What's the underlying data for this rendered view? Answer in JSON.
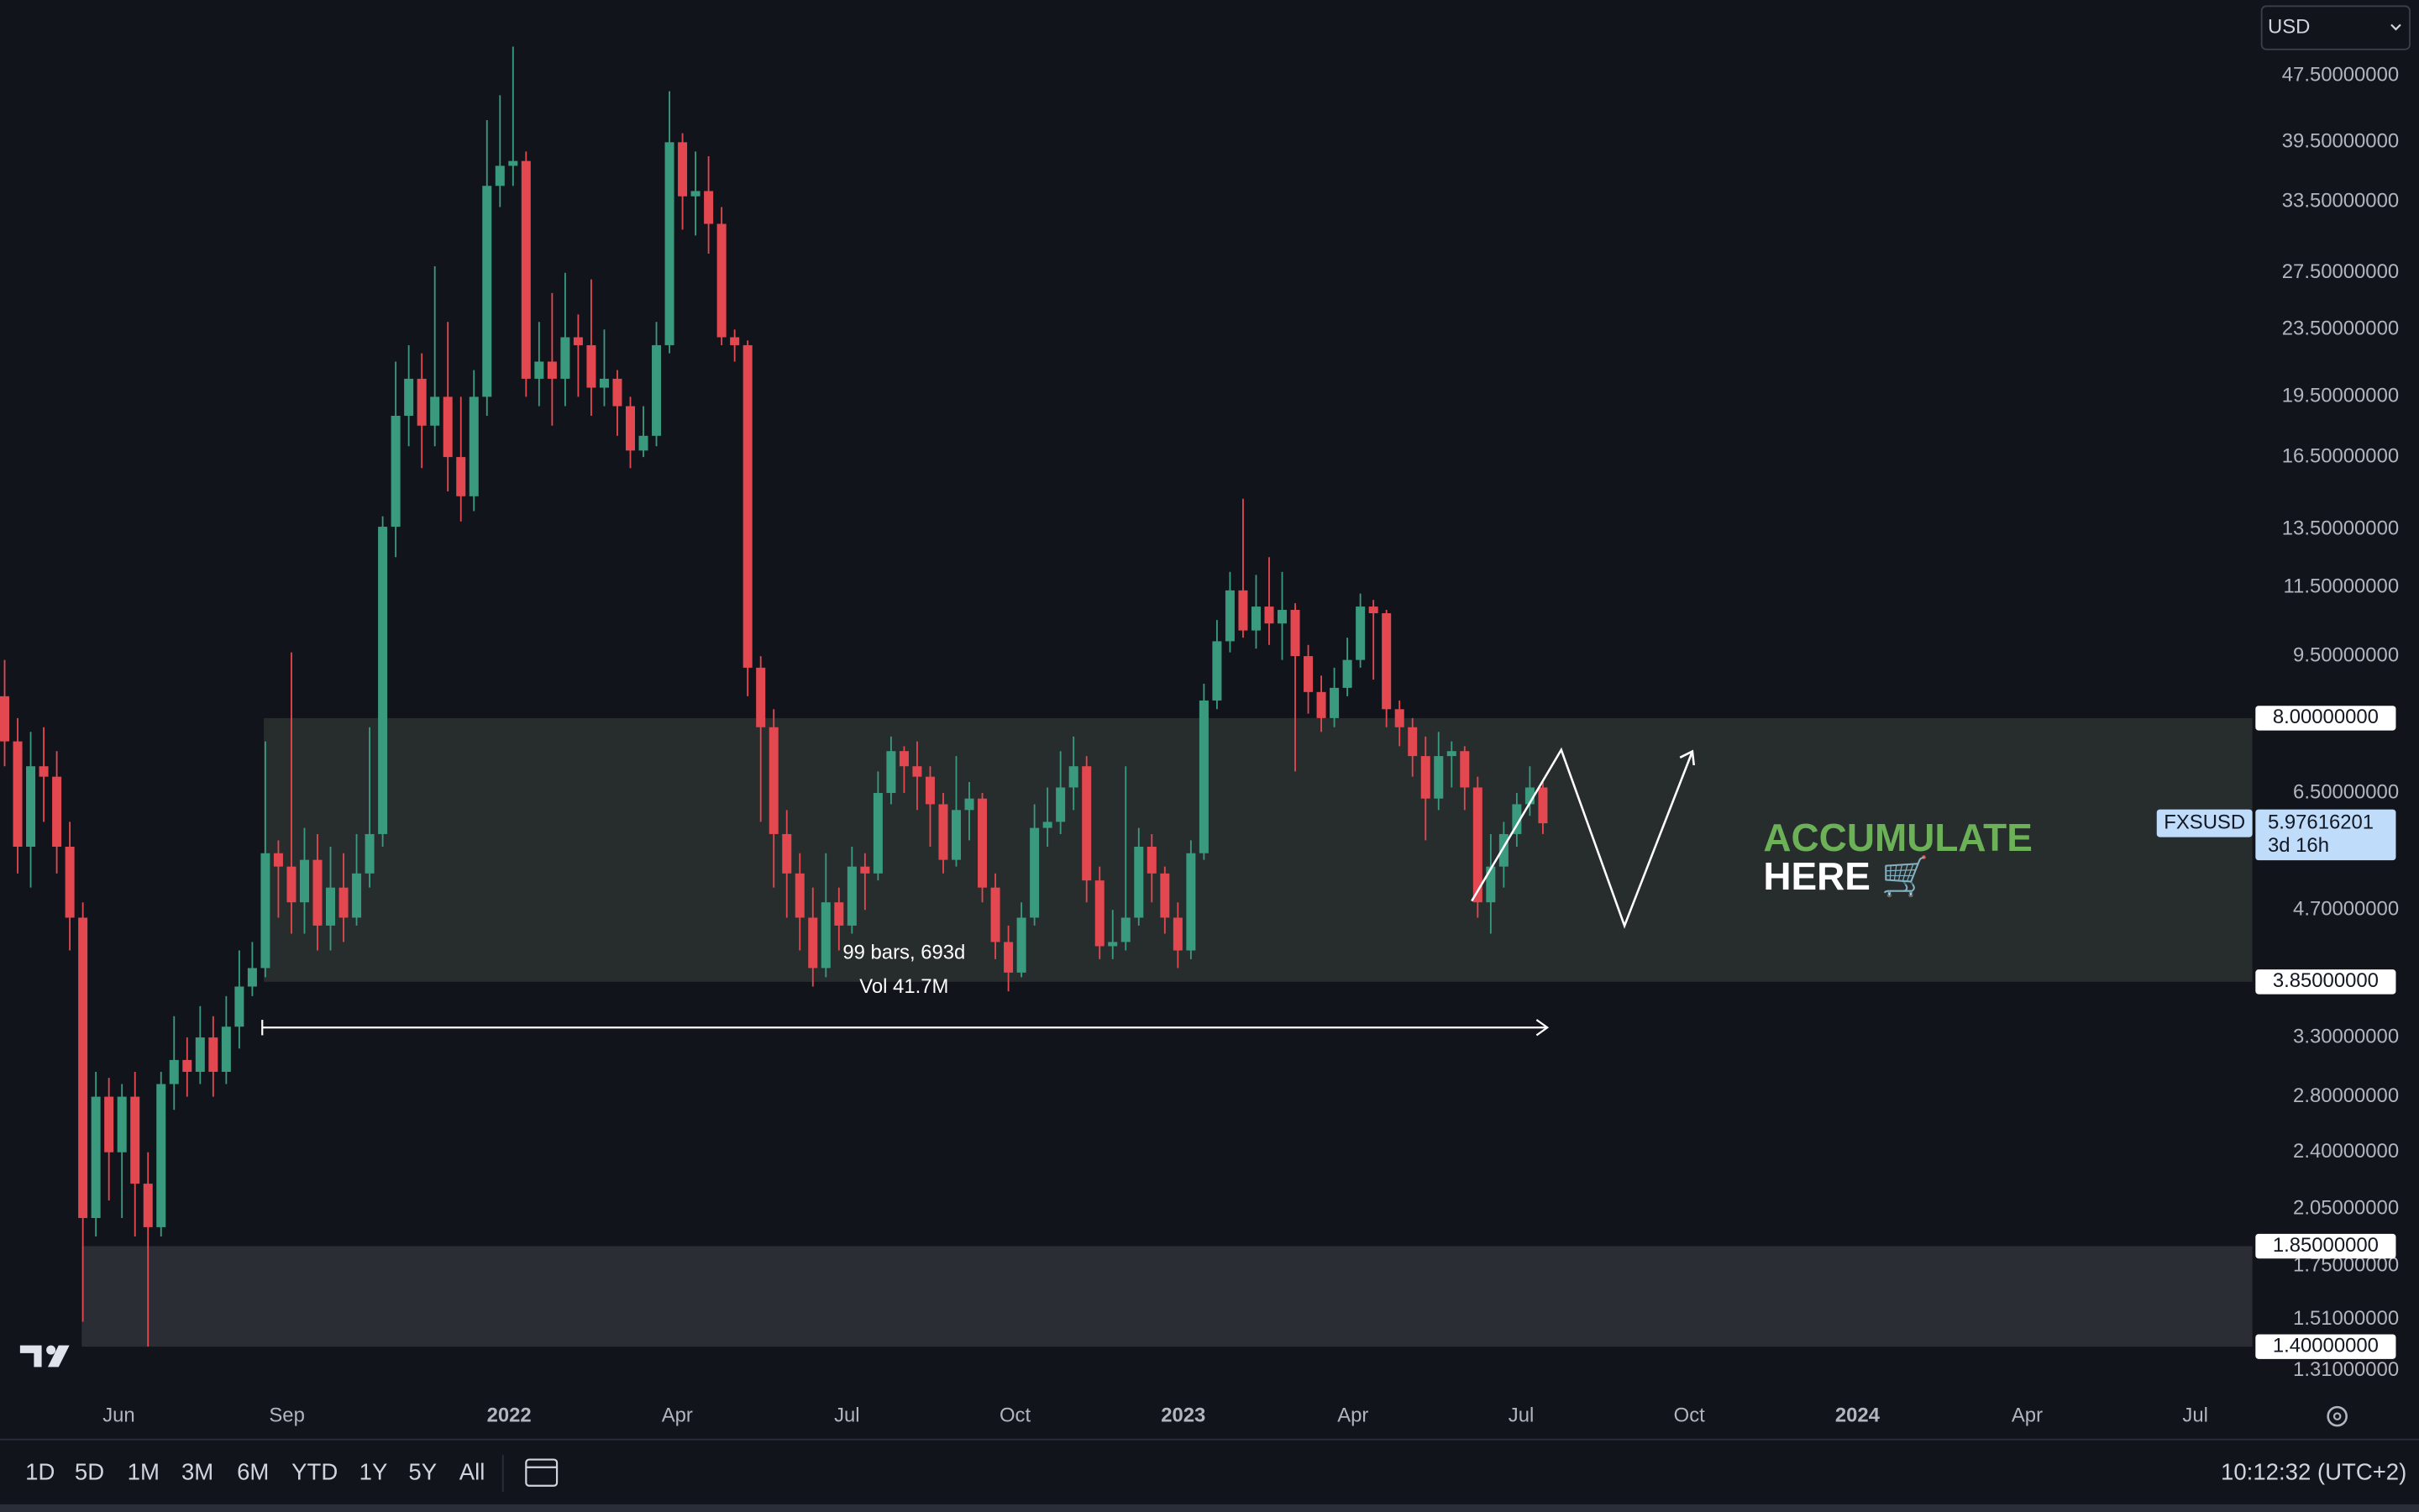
{
  "chart_data": {
    "type": "candlestick",
    "symbol": "FXSUSD",
    "currency": "USD",
    "log_scale": true,
    "grid": false,
    "up_color": "#3a9a7e",
    "down_color": "#e3474f",
    "open": [
      8.5,
      7.5,
      5.6,
      7.0,
      6.8,
      5.6,
      4.6,
      2.0,
      2.8,
      2.4,
      2.8,
      2.2,
      1.95,
      2.9,
      3.1,
      3.0,
      3.3,
      3.0,
      3.4,
      3.8,
      4.0,
      5.5,
      5.3,
      4.8,
      5.4,
      4.5,
      5.0,
      4.6,
      5.2,
      5.8,
      13.6,
      18.5,
      20.5,
      18.0,
      19.5,
      16.5,
      14.8,
      19.5,
      35.0,
      37.0,
      37.5,
      20.5,
      21.5,
      20.5,
      23.0,
      22.5,
      20.0,
      20.5,
      19.0,
      16.8,
      17.5,
      22.5,
      39.5,
      34.0,
      34.5,
      31.5,
      23.0,
      22.5,
      9.2,
      7.8,
      5.8,
      5.2,
      4.6,
      4.0,
      4.8,
      4.5,
      5.3,
      5.2,
      6.5,
      7.3,
      7.0,
      6.8,
      6.3,
      5.4,
      6.2,
      6.4,
      5.0,
      4.3,
      3.95,
      4.6,
      5.9,
      6.0,
      6.6,
      7.0,
      5.1,
      4.25,
      4.3,
      4.6,
      5.6,
      5.2,
      4.6,
      4.2,
      5.5,
      8.4,
      9.9,
      11.4,
      10.2,
      10.9,
      10.4,
      10.8,
      9.5,
      8.6,
      8.0,
      8.7,
      9.4,
      10.9,
      10.7,
      8.2,
      7.8,
      7.2,
      6.4,
      7.2,
      7.3,
      6.6,
      4.8,
      5.3,
      5.8,
      6.3,
      6.6
    ],
    "high": [
      9.4,
      8.0,
      7.7,
      7.8,
      7.3,
      6.0,
      4.8,
      3.0,
      2.95,
      2.9,
      3.0,
      2.4,
      3.0,
      3.5,
      3.3,
      3.6,
      3.5,
      3.7,
      4.2,
      4.3,
      7.5,
      5.7,
      9.6,
      5.9,
      5.8,
      5.6,
      5.5,
      5.8,
      7.8,
      14.0,
      21.5,
      22.5,
      22.0,
      28.0,
      24.0,
      19.5,
      21.0,
      42.0,
      45.0,
      51.5,
      38.5,
      24.0,
      26.0,
      27.5,
      24.5,
      27.0,
      23.5,
      21.0,
      19.5,
      19.0,
      24.0,
      45.5,
      40.5,
      38.5,
      38.0,
      33.0,
      23.5,
      22.8,
      9.5,
      8.2,
      6.2,
      5.5,
      5.0,
      5.5,
      5.0,
      5.6,
      5.5,
      6.9,
      7.6,
      7.4,
      7.5,
      7.0,
      6.5,
      7.2,
      6.7,
      6.5,
      5.2,
      4.5,
      4.8,
      6.3,
      6.6,
      7.3,
      7.6,
      7.2,
      5.3,
      4.7,
      7.0,
      5.9,
      5.8,
      5.3,
      4.8,
      5.7,
      8.8,
      10.5,
      12.0,
      14.7,
      11.9,
      12.5,
      12.0,
      11.0,
      9.8,
      9.0,
      9.2,
      10.0,
      11.3,
      11.1,
      10.8,
      8.4,
      8.0,
      7.6,
      7.7,
      7.5,
      7.4,
      6.8,
      5.8,
      6.0,
      6.5,
      7.0,
      6.7
    ],
    "low": [
      7.0,
      5.2,
      5.0,
      6.0,
      5.2,
      4.2,
      1.5,
      1.9,
      2.1,
      2.0,
      1.9,
      1.4,
      1.9,
      2.7,
      2.8,
      2.9,
      2.8,
      2.9,
      3.2,
      3.7,
      3.9,
      4.6,
      4.4,
      4.4,
      4.2,
      4.2,
      4.3,
      4.5,
      5.0,
      5.6,
      12.5,
      17.0,
      16.0,
      17.0,
      15.0,
      13.8,
      14.2,
      18.5,
      33.0,
      35.0,
      19.5,
      19.0,
      18.0,
      19.0,
      19.5,
      18.5,
      19.0,
      17.5,
      16.0,
      16.5,
      17.0,
      22.0,
      31.0,
      30.5,
      29.0,
      22.5,
      21.5,
      8.5,
      6.0,
      5.0,
      4.6,
      4.2,
      3.8,
      3.9,
      4.2,
      4.4,
      4.7,
      5.1,
      6.3,
      6.5,
      6.2,
      5.6,
      5.2,
      5.3,
      5.7,
      4.8,
      4.1,
      3.75,
      3.9,
      4.5,
      5.6,
      5.8,
      6.2,
      4.8,
      4.1,
      4.1,
      4.2,
      4.5,
      4.8,
      4.4,
      4.0,
      4.1,
      5.4,
      8.2,
      9.6,
      10.0,
      9.7,
      9.8,
      9.4,
      6.9,
      8.1,
      7.7,
      7.8,
      8.5,
      9.2,
      8.9,
      7.8,
      7.4,
      6.8,
      5.7,
      6.2,
      6.6,
      6.2,
      4.6,
      4.4,
      5.0,
      5.6,
      6.1,
      5.8
    ],
    "close": [
      7.5,
      5.6,
      7.0,
      6.8,
      5.6,
      4.6,
      2.0,
      2.8,
      2.4,
      2.8,
      2.2,
      1.95,
      2.9,
      3.1,
      3.0,
      3.3,
      3.0,
      3.4,
      3.8,
      4.0,
      5.5,
      5.3,
      4.8,
      5.4,
      4.5,
      5.0,
      4.6,
      5.2,
      5.8,
      13.6,
      18.5,
      20.5,
      18.0,
      19.5,
      16.5,
      14.8,
      19.5,
      35.0,
      37.0,
      37.5,
      20.5,
      21.5,
      20.5,
      23.0,
      22.5,
      20.0,
      20.5,
      19.0,
      16.8,
      17.5,
      22.5,
      39.5,
      34.0,
      34.5,
      31.5,
      23.0,
      22.5,
      9.2,
      7.8,
      5.8,
      5.2,
      4.6,
      4.0,
      4.8,
      4.5,
      5.3,
      5.2,
      6.5,
      7.3,
      7.0,
      6.8,
      6.3,
      5.4,
      6.2,
      6.4,
      5.0,
      4.3,
      3.95,
      4.6,
      5.9,
      6.0,
      6.6,
      7.0,
      5.1,
      4.25,
      4.3,
      4.6,
      5.6,
      5.2,
      4.6,
      4.2,
      5.5,
      8.4,
      9.9,
      11.4,
      10.2,
      10.9,
      10.4,
      10.8,
      9.5,
      8.6,
      8.0,
      8.7,
      9.4,
      10.9,
      10.7,
      8.2,
      7.8,
      7.2,
      6.4,
      7.2,
      7.3,
      6.6,
      4.8,
      5.3,
      5.8,
      6.3,
      6.6,
      5.97616201
    ],
    "xticks": [
      "Jun",
      "Sep",
      "2022",
      "Apr",
      "Jul",
      "Oct",
      "2023",
      "Apr",
      "Jul",
      "Oct",
      "2024",
      "Apr",
      "Jul"
    ],
    "ylim": [
      1.22,
      58.6
    ],
    "yticks": [
      {
        "value": 47.5,
        "label": "47.50000000"
      },
      {
        "value": 39.5,
        "label": "39.50000000"
      },
      {
        "value": 33.5,
        "label": "33.50000000"
      },
      {
        "value": 27.5,
        "label": "27.50000000"
      },
      {
        "value": 23.5,
        "label": "23.50000000"
      },
      {
        "value": 19.5,
        "label": "19.50000000"
      },
      {
        "value": 16.5,
        "label": "16.50000000"
      },
      {
        "value": 13.5,
        "label": "13.50000000"
      },
      {
        "value": 11.5,
        "label": "11.50000000"
      },
      {
        "value": 9.5,
        "label": "9.50000000"
      },
      {
        "value": 6.5,
        "label": "6.50000000"
      },
      {
        "value": 4.7,
        "label": "4.70000000"
      },
      {
        "value": 3.3,
        "label": "3.30000000"
      },
      {
        "value": 2.8,
        "label": "2.80000000"
      },
      {
        "value": 2.4,
        "label": "2.40000000"
      },
      {
        "value": 2.05,
        "label": "2.05000000"
      },
      {
        "value": 1.75,
        "label": "1.75000000"
      },
      {
        "value": 1.51,
        "label": "1.51000000"
      },
      {
        "value": 1.31,
        "label": "1.31000000"
      }
    ],
    "zones": [
      {
        "top": {
          "value": 8.0,
          "label": "8.00000000"
        },
        "bottom": {
          "value": 3.85,
          "label": "3.85000000"
        },
        "color": "#272c2d"
      },
      {
        "top": {
          "value": 1.85,
          "label": "1.85000000"
        },
        "bottom": {
          "value": 1.4,
          "label": "1.40000000"
        },
        "color": "#2b2d35"
      }
    ],
    "last_price": {
      "value": 5.97616201,
      "label": "5.97616201",
      "countdown": "3d 16h"
    },
    "annotations": {
      "measure": [
        "99 bars, 693d",
        "Vol 41.7M"
      ],
      "callout": [
        "ACCUMULATE",
        "HERE 🛒"
      ]
    },
    "toolbar": {
      "ranges": [
        "1D",
        "5D",
        "1M",
        "3M",
        "6M",
        "YTD",
        "1Y",
        "5Y",
        "All"
      ],
      "time": "10:12:32 (UTC+2)"
    }
  }
}
